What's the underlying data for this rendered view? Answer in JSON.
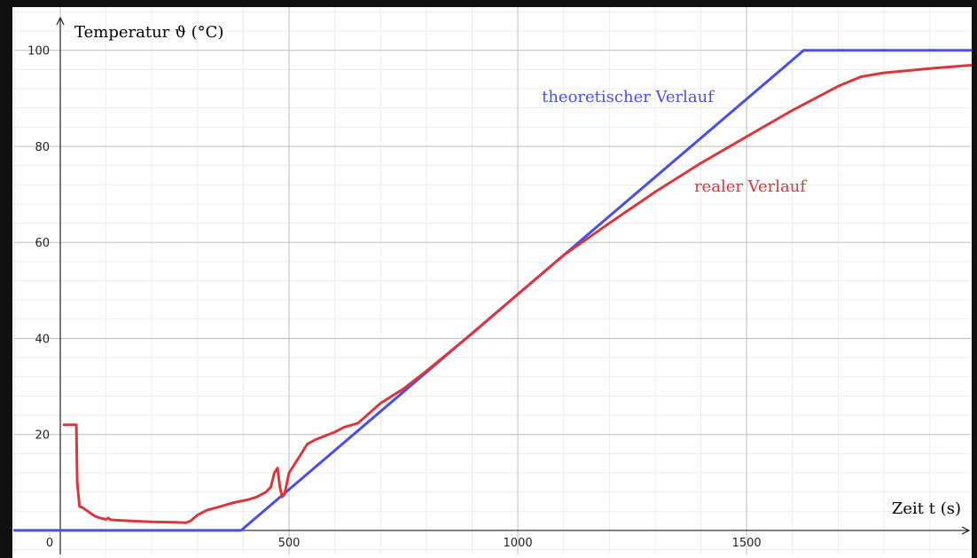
{
  "chart_data": {
    "type": "line",
    "ylabel": "Temperatur ϑ  (°C)",
    "xlabel": "Zeit t  (s)",
    "xlim": [
      -100,
      1990
    ],
    "ylim": [
      -5,
      109
    ],
    "xticks": [
      0,
      500,
      1000,
      1500
    ],
    "yticks": [
      20,
      40,
      60,
      80,
      100
    ],
    "xminorticks": [
      -100,
      100,
      200,
      300,
      400,
      600,
      700,
      800,
      900,
      1100,
      1200,
      1300,
      1400,
      1600,
      1700,
      1800,
      1900
    ],
    "yminorticks": [
      -4,
      4,
      8,
      12,
      16,
      24,
      28,
      32,
      36,
      44,
      48,
      52,
      56,
      64,
      68,
      72,
      76,
      84,
      88,
      92,
      96,
      104,
      108
    ],
    "grid": true,
    "series": [
      {
        "name": "theoretischer Verlauf",
        "color": "#4b4ee6",
        "x": [
          -100,
          395,
          1625,
          1990
        ],
        "values": [
          0,
          0,
          100,
          100
        ]
      },
      {
        "name": "realer Verlauf",
        "color": "#d9363e",
        "x": [
          8,
          35,
          37,
          42,
          48,
          60,
          75,
          90,
          100,
          105,
          110,
          150,
          200,
          250,
          275,
          285,
          300,
          320,
          350,
          380,
          410,
          430,
          450,
          460,
          468,
          475,
          480,
          485,
          490,
          500,
          520,
          540,
          560,
          600,
          620,
          650,
          700,
          750,
          800,
          900,
          1000,
          1100,
          1200,
          1300,
          1400,
          1500,
          1600,
          1700,
          1750,
          1800,
          1900,
          1990
        ],
        "values": [
          22,
          22,
          10,
          5,
          4.8,
          4,
          3,
          2.5,
          2.3,
          2.6,
          2.2,
          2,
          1.8,
          1.7,
          1.6,
          2,
          3.2,
          4.2,
          5,
          5.8,
          6.4,
          7,
          8,
          9,
          12,
          13,
          9,
          7,
          7.5,
          12,
          15,
          18,
          19,
          20.5,
          21.5,
          22.3,
          26.5,
          29.5,
          33.2,
          41,
          49.2,
          57.3,
          64,
          70.5,
          76.5,
          82,
          87.5,
          92.5,
          94.5,
          95.3,
          96.2,
          96.9
        ]
      }
    ]
  }
}
